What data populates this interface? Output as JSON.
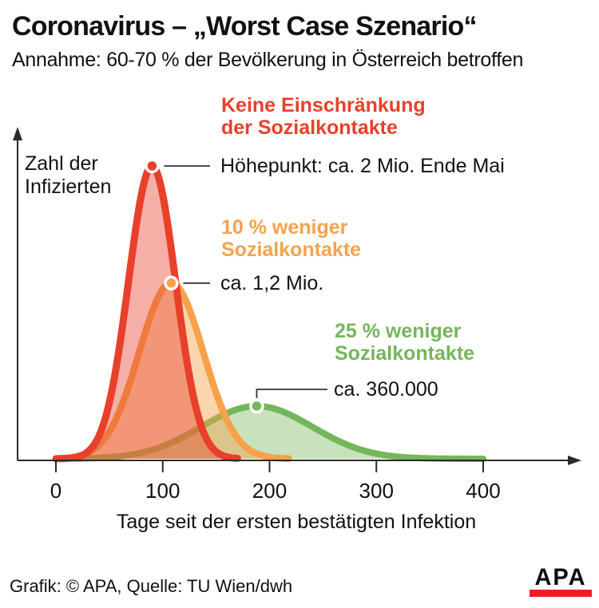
{
  "title": "Coronavirus – „Worst Case Szenario“",
  "subtitle": "Annahme: 60-70 % der Bevölkerung in Österreich betroffen",
  "footer": {
    "credit": "Grafik: © APA, Quelle: TU Wien/dwh",
    "logo_text": "APA",
    "logo_color": "#ee1d23"
  },
  "chart_data": {
    "type": "area",
    "title": "Coronavirus – „Worst Case Szenario“",
    "subtitle": "Annahme: 60-70 % der Bevölkerung in Österreich betroffen",
    "xlabel": "Tage seit der ersten bestätigten Infektion",
    "ylabel": "Zahl der Infizierten",
    "ylabel_lines": [
      "Zahl der",
      "Infizierten"
    ],
    "x_ticks": [
      0,
      100,
      200,
      300,
      400
    ],
    "xlim": [
      0,
      490
    ],
    "ylim": [
      0,
      2200000
    ],
    "grid": false,
    "legend_position": "inline-annotations",
    "axis_color": "#2a2a2a",
    "callout_color": "#333333",
    "series": [
      {
        "name": "Keine Einschränkung der Sozialkontakte",
        "label_lines": [
          "Keine Einschränkung",
          "der Sozialkontakte"
        ],
        "annotation": "Höhepunkt: ca. 2 Mio. Ende Mai",
        "color": "#e8402a",
        "fill": "rgba(232,64,42,0.42)",
        "peak_day": 90,
        "peak_value": 2000000,
        "sigma_days": 22,
        "day_range": [
          0,
          170
        ],
        "stroke_width": 9
      },
      {
        "name": "10 % weniger Sozialkontakte",
        "label_lines": [
          "10 % weniger",
          "Sozialkontakte"
        ],
        "annotation": "ca. 1,2 Mio.",
        "color": "#f7a24b",
        "fill": "rgba(247,162,75,0.45)",
        "peak_day": 108,
        "peak_value": 1200000,
        "sigma_days": 30,
        "day_range": [
          6,
          218
        ],
        "stroke_width": 8.5
      },
      {
        "name": "25 % weniger Sozialkontakte",
        "label_lines": [
          "25 % weniger",
          "Sozialkontakte"
        ],
        "annotation": "ca. 360.000",
        "color": "#74b65b",
        "fill": "rgba(115,182,91,0.40)",
        "peak_day": 188,
        "peak_value": 360000,
        "sigma_days": 52,
        "day_range": [
          0,
          400
        ],
        "stroke_width": 8
      }
    ]
  }
}
